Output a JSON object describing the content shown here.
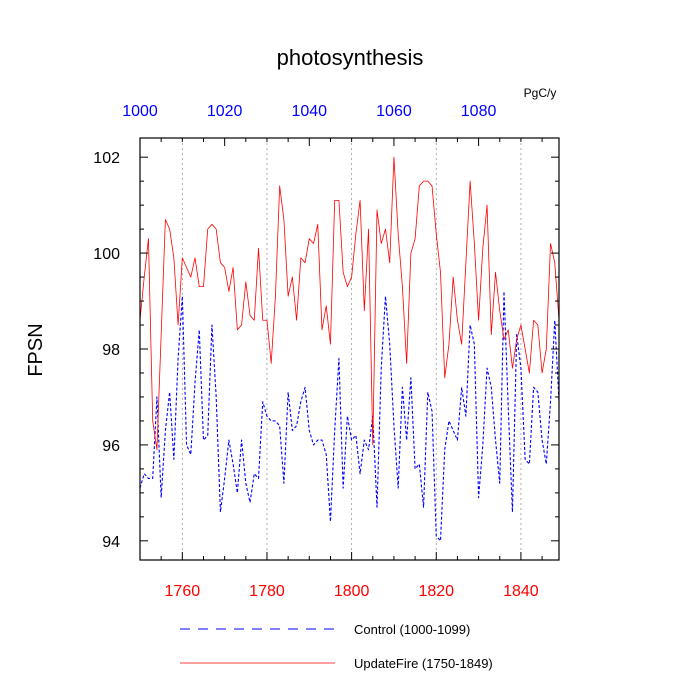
{
  "chart_data": {
    "type": "line",
    "title": "photosynthesis",
    "ylabel": "FPSN",
    "units": "PgC/y",
    "ylim": [
      93.6,
      102.4
    ],
    "yticks": [
      "94",
      "96",
      "98",
      "100",
      "102"
    ],
    "grid": "vertical dotted",
    "bottom_axis": {
      "range": [
        1750,
        1849
      ],
      "ticks": [
        "1760",
        "1780",
        "1800",
        "1820",
        "1840"
      ],
      "color": "#ff0000"
    },
    "top_axis": {
      "range": [
        1000,
        1099
      ],
      "ticks": [
        "1000",
        "1020",
        "1040",
        "1060",
        "1080"
      ],
      "color": "#0000ff"
    },
    "legend_position": "bottom",
    "series": [
      {
        "name": "Control (1000-1099)",
        "axis": "top",
        "color": "#0000ff",
        "style": "dashed",
        "x": [
          1000,
          1001,
          1002,
          1003,
          1004,
          1005,
          1006,
          1007,
          1008,
          1009,
          1010,
          1011,
          1012,
          1013,
          1014,
          1015,
          1016,
          1017,
          1018,
          1019,
          1020,
          1021,
          1022,
          1023,
          1024,
          1025,
          1026,
          1027,
          1028,
          1029,
          1030,
          1031,
          1032,
          1033,
          1034,
          1035,
          1036,
          1037,
          1038,
          1039,
          1040,
          1041,
          1042,
          1043,
          1044,
          1045,
          1046,
          1047,
          1048,
          1049,
          1050,
          1051,
          1052,
          1053,
          1054,
          1055,
          1056,
          1057,
          1058,
          1059,
          1060,
          1061,
          1062,
          1063,
          1064,
          1065,
          1066,
          1067,
          1068,
          1069,
          1070,
          1071,
          1072,
          1073,
          1074,
          1075,
          1076,
          1077,
          1078,
          1079,
          1080,
          1081,
          1082,
          1083,
          1084,
          1085,
          1086,
          1087,
          1088,
          1089,
          1090,
          1091,
          1092,
          1093,
          1094,
          1095,
          1096,
          1097,
          1098,
          1099
        ],
        "values": [
          95.1,
          95.4,
          95.3,
          95.3,
          97.0,
          94.9,
          96.3,
          97.1,
          95.7,
          97.8,
          99.1,
          96.0,
          95.8,
          97.3,
          98.4,
          96.1,
          96.2,
          98.5,
          97.0,
          94.6,
          95.3,
          96.1,
          95.6,
          95.0,
          96.1,
          95.2,
          94.8,
          95.4,
          95.3,
          96.9,
          96.6,
          96.5,
          96.5,
          96.4,
          95.2,
          97.1,
          96.3,
          96.4,
          96.9,
          97.2,
          96.3,
          96.0,
          96.1,
          96.1,
          95.8,
          94.4,
          96.3,
          97.8,
          95.1,
          96.6,
          96.1,
          96.2,
          95.4,
          96.1,
          95.9,
          96.6,
          94.7,
          97.6,
          99.1,
          98.1,
          96.4,
          95.1,
          97.2,
          96.1,
          97.4,
          95.5,
          95.6,
          94.7,
          97.1,
          96.7,
          94.1,
          94.0,
          95.9,
          96.5,
          96.3,
          96.1,
          97.2,
          96.6,
          98.5,
          98.1,
          94.9,
          96.0,
          97.6,
          97.2,
          96.1,
          95.2,
          99.2,
          96.8,
          94.6,
          98.3,
          97.6,
          95.7,
          95.6,
          97.2,
          97.1,
          96.1,
          95.6,
          96.9,
          98.6,
          96.9
        ]
      },
      {
        "name": "UpdateFire (1750-1849)",
        "axis": "bottom",
        "color": "#ff0000",
        "style": "solid",
        "x": [
          1750,
          1751,
          1752,
          1753,
          1754,
          1755,
          1756,
          1757,
          1758,
          1759,
          1760,
          1761,
          1762,
          1763,
          1764,
          1765,
          1766,
          1767,
          1768,
          1769,
          1770,
          1771,
          1772,
          1773,
          1774,
          1775,
          1776,
          1777,
          1778,
          1779,
          1780,
          1781,
          1782,
          1783,
          1784,
          1785,
          1786,
          1787,
          1788,
          1789,
          1790,
          1791,
          1792,
          1793,
          1794,
          1795,
          1796,
          1797,
          1798,
          1799,
          1800,
          1801,
          1802,
          1803,
          1804,
          1805,
          1806,
          1807,
          1808,
          1809,
          1810,
          1811,
          1812,
          1813,
          1814,
          1815,
          1816,
          1817,
          1818,
          1819,
          1820,
          1821,
          1822,
          1823,
          1824,
          1825,
          1826,
          1827,
          1828,
          1829,
          1830,
          1831,
          1832,
          1833,
          1834,
          1835,
          1836,
          1837,
          1838,
          1839,
          1840,
          1841,
          1842,
          1843,
          1844,
          1845,
          1846,
          1847,
          1848,
          1849
        ],
        "values": [
          98.6,
          99.5,
          100.3,
          96.5,
          95.9,
          98.3,
          100.7,
          100.5,
          99.9,
          98.5,
          99.9,
          99.7,
          99.5,
          99.9,
          99.3,
          99.3,
          100.5,
          100.6,
          100.5,
          99.8,
          99.7,
          99.2,
          99.7,
          98.4,
          98.5,
          99.4,
          98.7,
          98.6,
          100.1,
          98.6,
          98.6,
          97.7,
          99.1,
          101.4,
          100.7,
          99.1,
          99.5,
          98.6,
          99.9,
          99.8,
          100.3,
          100.2,
          100.6,
          98.4,
          98.9,
          98.1,
          101.1,
          101.1,
          99.6,
          99.3,
          99.5,
          100.4,
          101.1,
          98.8,
          100.5,
          96.0,
          100.9,
          100.2,
          100.5,
          99.8,
          102.0,
          100.4,
          99.3,
          97.7,
          100.0,
          100.3,
          101.4,
          101.5,
          101.5,
          101.4,
          100.4,
          99.6,
          97.4,
          98.1,
          99.5,
          98.6,
          98.1,
          99.8,
          101.5,
          100.2,
          98.6,
          100.1,
          101.0,
          98.3,
          99.6,
          98.8,
          98.2,
          98.4,
          97.6,
          98.2,
          98.5,
          98.0,
          97.5,
          98.6,
          98.5,
          97.5,
          98.0,
          100.2,
          99.8,
          98.6
        ]
      }
    ]
  }
}
